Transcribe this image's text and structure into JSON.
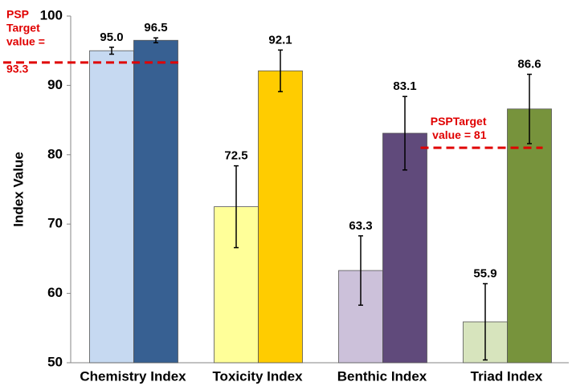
{
  "chart_data": {
    "type": "bar",
    "y_label": "Index Value",
    "categories": [
      "Chemistry Index",
      "Toxicity Index",
      "Benthic Index",
      "Triad Index"
    ],
    "ylim": [
      50,
      100
    ],
    "yticks": [
      50,
      60,
      70,
      80,
      90,
      100
    ],
    "grid": false,
    "series": [
      {
        "colors": [
          "#c6d9f1",
          "#ffff99",
          "#ccc1da",
          "#d7e4bd"
        ],
        "values": [
          95.0,
          72.5,
          63.3,
          55.9
        ],
        "value_labels": [
          "95.0",
          "72.5",
          "63.3",
          "55.9"
        ],
        "errors": [
          0.5,
          5.9,
          5.0,
          5.5
        ]
      },
      {
        "colors": [
          "#376092",
          "#ffcc00",
          "#604a7b",
          "#77933c"
        ],
        "values": [
          96.5,
          92.1,
          83.1,
          86.6
        ],
        "value_labels": [
          "96.5",
          "92.1",
          "83.1",
          "86.6"
        ],
        "errors": [
          0.35,
          3.0,
          5.3,
          5.0
        ]
      }
    ],
    "targets": [
      {
        "value": 93.3,
        "category": 0,
        "label_lines": [
          "PSP",
          "Target",
          "value =",
          "93.3"
        ]
      },
      {
        "value": 81,
        "category": 3,
        "label_lines": [
          "PSPTarget",
          "value = 81"
        ]
      }
    ]
  }
}
